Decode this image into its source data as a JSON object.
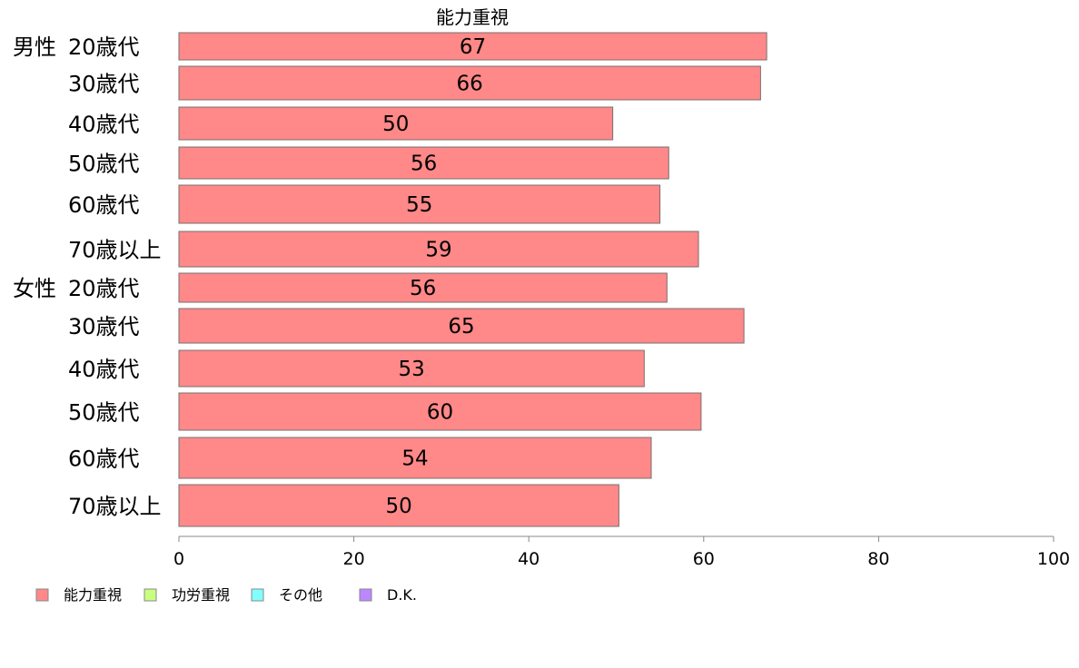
{
  "chart_data": {
    "type": "bar",
    "orientation": "horizontal",
    "title": "能力重視",
    "categories": [
      {
        "group": "男性",
        "label": "20歳代"
      },
      {
        "group": "",
        "label": "30歳代"
      },
      {
        "group": "",
        "label": "40歳代"
      },
      {
        "group": "",
        "label": "50歳代"
      },
      {
        "group": "",
        "label": "60歳代"
      },
      {
        "group": "",
        "label": "70歳以上"
      },
      {
        "group": "女性",
        "label": "20歳代"
      },
      {
        "group": "",
        "label": "30歳代"
      },
      {
        "group": "",
        "label": "40歳代"
      },
      {
        "group": "",
        "label": "50歳代"
      },
      {
        "group": "",
        "label": "60歳代"
      },
      {
        "group": "",
        "label": "70歳以上"
      }
    ],
    "series": [
      {
        "name": "能力重視",
        "color": "#ff8888",
        "values": [
          67.2,
          66.5,
          49.6,
          56.0,
          55.0,
          59.4,
          55.8,
          64.6,
          53.2,
          59.7,
          54.0,
          50.3
        ],
        "data_labels": [
          "67",
          "66",
          "50",
          "56",
          "55",
          "59",
          "56",
          "65",
          "53",
          "60",
          "54",
          "50"
        ]
      }
    ],
    "xlim": [
      0,
      100
    ],
    "xticks": [
      "0",
      "20",
      "40",
      "60",
      "80",
      "100"
    ],
    "legend": {
      "position": "bottom-left",
      "items": [
        {
          "label": "能力重視",
          "color": "#ff8888"
        },
        {
          "label": "功労重視",
          "color": "#c8ff80"
        },
        {
          "label": "その他",
          "color": "#80ffff"
        },
        {
          "label": "D.K.",
          "color": "#bb88ff"
        }
      ]
    },
    "grid": false
  }
}
